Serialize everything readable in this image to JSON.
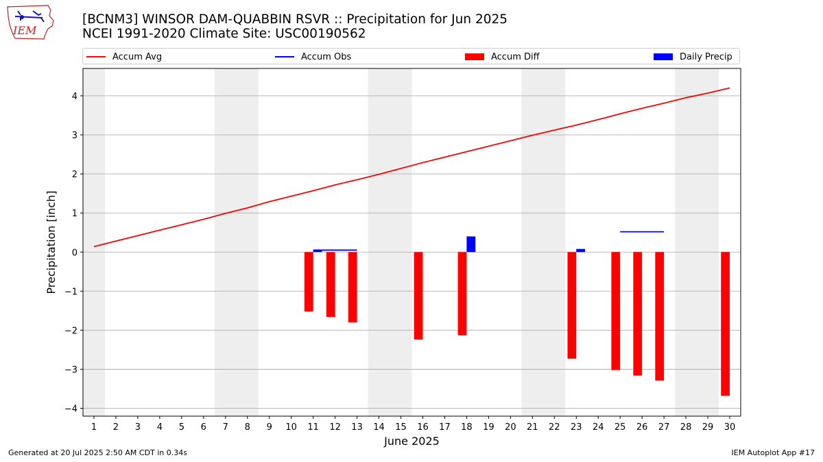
{
  "header": {
    "logo_text": "IEM",
    "title_line1": "[BCNM3] WINSOR DAM-QUABBIN RSVR :: Precipitation for Jun 2025",
    "title_line2": "NCEI 1991-2020 Climate Site: USC00190562"
  },
  "legend": {
    "accum_avg": "Accum Avg",
    "accum_obs": "Accum Obs",
    "accum_diff": "Accum Diff",
    "daily_precip": "Daily Precip"
  },
  "colors": {
    "accum_avg": "#ff0000",
    "accum_obs": "#0000ff",
    "accum_diff": "#ff0000",
    "daily_precip": "#0000ff",
    "weekend_shade": "#eeeeee",
    "grid": "#b0b0b0"
  },
  "footer": {
    "generated": "Generated at 20 Jul 2025 2:50 AM CDT in 0.34s",
    "app": "IEM Autoplot App #17"
  },
  "chart_data": {
    "type": "bar",
    "title": "[BCNM3] WINSOR DAM-QUABBIN RSVR :: Precipitation for Jun 2025",
    "xlabel": "June 2025",
    "ylabel": "Precipitation [inch]",
    "xlim": [
      0.5,
      30.5
    ],
    "ylim": [
      -4.2,
      4.7
    ],
    "yticks": [
      -4,
      -3,
      -2,
      -1,
      0,
      1,
      2,
      3,
      4
    ],
    "ytick_labels": [
      "−4",
      "−3",
      "−2",
      "−1",
      "0",
      "1",
      "2",
      "3",
      "4"
    ],
    "days": [
      1,
      2,
      3,
      4,
      5,
      6,
      7,
      8,
      9,
      10,
      11,
      12,
      13,
      14,
      15,
      16,
      17,
      18,
      19,
      20,
      21,
      22,
      23,
      24,
      25,
      26,
      27,
      28,
      29,
      30
    ],
    "grid": true,
    "weekend_days": [
      1,
      7,
      8,
      14,
      15,
      21,
      22,
      28,
      29
    ],
    "accum_avg": [
      0.14,
      0.28,
      0.42,
      0.56,
      0.7,
      0.84,
      0.99,
      1.13,
      1.29,
      1.43,
      1.57,
      1.72,
      1.85,
      1.99,
      2.14,
      2.29,
      2.43,
      2.57,
      2.71,
      2.85,
      2.99,
      3.12,
      3.25,
      3.39,
      3.54,
      3.68,
      3.81,
      3.95,
      4.07,
      4.2
    ],
    "accum_obs": [
      {
        "day": 11,
        "value": 0.05
      },
      {
        "day": 12,
        "value": 0.05
      },
      {
        "day": 13,
        "value": 0.05
      },
      {
        "day": 25,
        "value": 0.52
      },
      {
        "day": 26,
        "value": 0.52
      },
      {
        "day": 27,
        "value": 0.52
      }
    ],
    "accum_diff": [
      {
        "day": 11,
        "value": -1.52
      },
      {
        "day": 12,
        "value": -1.66
      },
      {
        "day": 13,
        "value": -1.8
      },
      {
        "day": 16,
        "value": -2.24
      },
      {
        "day": 18,
        "value": -2.13
      },
      {
        "day": 23,
        "value": -2.73
      },
      {
        "day": 25,
        "value": -3.02
      },
      {
        "day": 26,
        "value": -3.16
      },
      {
        "day": 27,
        "value": -3.29
      },
      {
        "day": 30,
        "value": -3.68
      }
    ],
    "daily_precip": [
      {
        "day": 11,
        "value": 0.05
      },
      {
        "day": 18,
        "value": 0.4
      },
      {
        "day": 23,
        "value": 0.08
      }
    ]
  }
}
